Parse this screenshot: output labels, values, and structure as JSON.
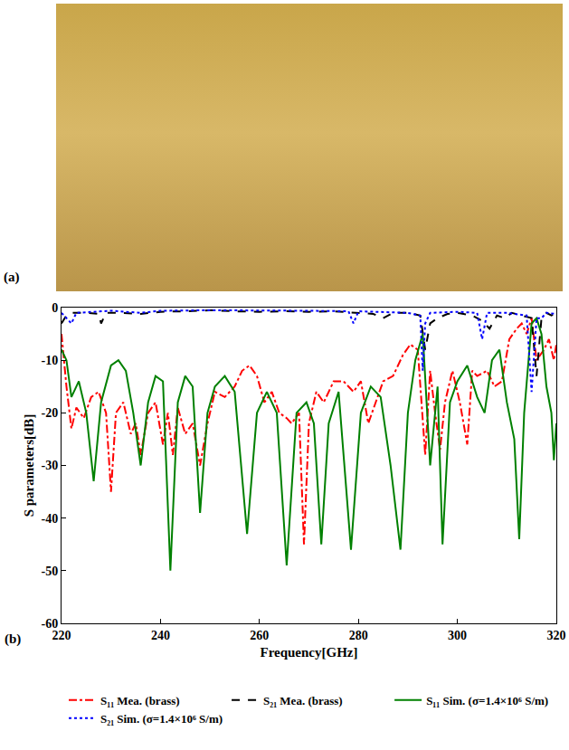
{
  "panel_a": {
    "label": "(a)"
  },
  "chart_data": {
    "type": "line",
    "panel_label": "(b)",
    "x_label": "Frequency[GHz]",
    "y_label": "S parameters[dB]",
    "xlim": [
      220,
      320
    ],
    "xticks": [
      220,
      240,
      260,
      280,
      300,
      320
    ],
    "ylim": [
      -60,
      0
    ],
    "yticks": [
      -60,
      -50,
      -40,
      -30,
      -20,
      -10,
      0
    ],
    "legend": "bottom",
    "series": [
      {
        "name": "S₁₁ Mea. (brass)",
        "color": "#ff0000",
        "line_style": "dashdot",
        "x": [
          220,
          221,
          222,
          223,
          224.5,
          226,
          227.5,
          229,
          230,
          231,
          232.5,
          234,
          235,
          236,
          237.5,
          239,
          240.5,
          241.5,
          242.5,
          243.5,
          245,
          246.5,
          248,
          249.5,
          251,
          253,
          255,
          256.5,
          258,
          259.5,
          261,
          262.5,
          264,
          265.5,
          266.5,
          268,
          269,
          270,
          271.5,
          273,
          275,
          277,
          279,
          280.5,
          282,
          283.5,
          285,
          287,
          289,
          290.5,
          292,
          293.5,
          294.5,
          295.5,
          296.5,
          297.5,
          299,
          300.5,
          302,
          303,
          304,
          306,
          307.5,
          309,
          310.5,
          312,
          313,
          314,
          315,
          316,
          317.5,
          318.5,
          319.5,
          320
        ],
        "values": [
          -5,
          -15,
          -23,
          -19,
          -21,
          -17,
          -16,
          -20,
          -35,
          -20,
          -18,
          -24,
          -22,
          -28,
          -20,
          -18,
          -26,
          -20,
          -28,
          -19,
          -24,
          -22,
          -30,
          -22,
          -16,
          -17,
          -15,
          -12,
          -11,
          -13,
          -18,
          -16,
          -20,
          -21,
          -22,
          -20,
          -45,
          -22,
          -16,
          -18,
          -14,
          -14,
          -16,
          -14,
          -22,
          -18,
          -14,
          -13,
          -9,
          -7,
          -8,
          -28,
          -12,
          -20,
          -27,
          -18,
          -12,
          -18,
          -26,
          -12,
          -13,
          -12,
          -15,
          -14,
          -6,
          -4,
          -3,
          -5,
          -2,
          -10,
          -8,
          -6,
          -10,
          -7
        ]
      },
      {
        "name": "S₂₁ Mea. (brass)",
        "color": "#000000",
        "line_style": "dash",
        "x": [
          220,
          221,
          222,
          225,
          227.5,
          228,
          229,
          232,
          236,
          240,
          245,
          250,
          255,
          260,
          265,
          270,
          275,
          280,
          283,
          285,
          287,
          290,
          292.5,
          293.5,
          294.5,
          296,
          298,
          300,
          303,
          305,
          306.5,
          308,
          309.5,
          311,
          313,
          315,
          316,
          317,
          318,
          319,
          320
        ],
        "values": [
          -3,
          -1.5,
          -1,
          -1,
          -1.2,
          -3,
          -1,
          -1,
          -1.2,
          -0.8,
          -0.7,
          -0.5,
          -0.7,
          -0.8,
          -0.7,
          -0.8,
          -0.7,
          -1,
          -1.2,
          -2,
          -1,
          -1,
          -1.5,
          -8,
          -3,
          -2,
          -1.2,
          -1,
          -1.5,
          -2.5,
          -4,
          -1.5,
          -2,
          -1,
          -1.5,
          -2,
          -13,
          -2,
          -1,
          -1.5,
          -1
        ]
      },
      {
        "name": "S₁₁ Sim. (σ=1.4×10⁶ S/m)",
        "color": "#008000",
        "line_style": "solid",
        "x": [
          220,
          221,
          222,
          223.5,
          225,
          226.5,
          228,
          230,
          231.5,
          233,
          234.5,
          236,
          237.5,
          239,
          240.5,
          242,
          243.5,
          245,
          246.5,
          248,
          249.5,
          251,
          253,
          255,
          257.5,
          259.5,
          261.5,
          263.5,
          265.5,
          267.5,
          269.5,
          271,
          272.5,
          274,
          276,
          278.5,
          280.5,
          282.5,
          284.5,
          286.5,
          288.5,
          290,
          291.5,
          293,
          294.5,
          296,
          297,
          298.5,
          300,
          302,
          304,
          305.5,
          307,
          308.5,
          310,
          311.5,
          312.5,
          313.5,
          315,
          316,
          317,
          318,
          319,
          319.5,
          320
        ],
        "values": [
          -8,
          -10,
          -17,
          -14,
          -20,
          -33,
          -18,
          -11,
          -10,
          -12,
          -20,
          -30,
          -18,
          -13,
          -14,
          -50,
          -18,
          -13,
          -15,
          -39,
          -20,
          -15,
          -13,
          -16,
          -43,
          -20,
          -16,
          -20,
          -49,
          -20,
          -18,
          -22,
          -45,
          -22,
          -16,
          -46,
          -20,
          -15,
          -17,
          -30,
          -46,
          -20,
          -10,
          -5,
          -30,
          -15,
          -45,
          -18,
          -14,
          -11,
          -17,
          -20,
          -10,
          -8,
          -18,
          -25,
          -44,
          -20,
          -3,
          -2,
          -5,
          -15,
          -20,
          -29,
          -22
        ]
      },
      {
        "name": "S₂₁ Sim. (σ=1.4×10⁶ S/m)",
        "color": "#0000ff",
        "line_style": "dot",
        "x": [
          220,
          221,
          222,
          223,
          230,
          236,
          240,
          250,
          260,
          270,
          278,
          279,
          280,
          290,
          292.5,
          293,
          293.5,
          294.5,
          300,
          304,
          305,
          306,
          310,
          314,
          315,
          316,
          317,
          318,
          320
        ],
        "values": [
          -1,
          -2,
          -3,
          -1,
          -0.6,
          -1,
          -0.6,
          -0.5,
          -0.5,
          -0.6,
          -0.7,
          -3,
          -0.7,
          -1,
          -1.5,
          -12,
          -3,
          -1,
          -0.8,
          -1,
          -6,
          -1,
          -1,
          -1.5,
          -16,
          -2,
          -2,
          -1,
          -1.2
        ]
      }
    ]
  }
}
